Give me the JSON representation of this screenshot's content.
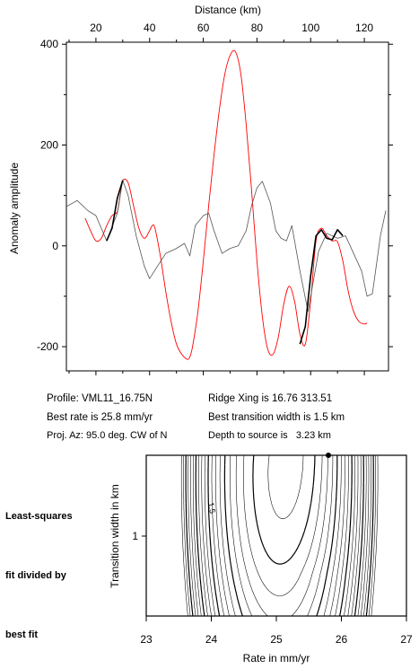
{
  "info": {
    "profile": "Profile: VML11_16.75N",
    "best_rate": "Best rate is 25.8 mm/yr",
    "proj_az": "Proj. Az: 95.0 deg. CW of N",
    "ridge_xing": "Ridge Xing is 16.76 313.51",
    "best_width": "Best transition width is 1.5 km",
    "depth": "Depth to source is   3.23 km"
  },
  "side_label": [
    "Least-squares",
    "fit divided by",
    "best fit"
  ],
  "contour_label": "1.5",
  "colors": {
    "model": "#ff0000",
    "observed": "#000000",
    "frame": "#000000"
  },
  "chart_data": [
    {
      "type": "line",
      "title": "",
      "xlabel": "Distance (km)",
      "ylabel": "Anomaly amplitude",
      "xlim": [
        9,
        129
      ],
      "ylim": [
        -248,
        404
      ],
      "x_ticks": [
        20,
        40,
        60,
        80,
        100,
        120
      ],
      "y_ticks": [
        400,
        200,
        0,
        -200
      ],
      "x_axis_position": "top",
      "grid": false,
      "series": [
        {
          "style": "model-red",
          "x": [
            16,
            18,
            20,
            22,
            24,
            26,
            28,
            29,
            30,
            32,
            34,
            36,
            38,
            40,
            41,
            42,
            44,
            46,
            48,
            50,
            52,
            54,
            55,
            56,
            58,
            60,
            62,
            64,
            66,
            68,
            70,
            72,
            74,
            76,
            78,
            80,
            82,
            84,
            86,
            88,
            90,
            92,
            94,
            96,
            98,
            100,
            102,
            104,
            106,
            108,
            110,
            112,
            114,
            116,
            118,
            120,
            121
          ],
          "y": [
            55,
            30,
            10,
            15,
            40,
            60,
            68,
            100,
            130,
            125,
            80,
            35,
            15,
            30,
            40,
            35,
            -20,
            -90,
            -150,
            -195,
            -215,
            -225,
            -220,
            -200,
            -130,
            -30,
            80,
            180,
            270,
            340,
            378,
            385,
            340,
            240,
            110,
            -30,
            -140,
            -205,
            -215,
            -180,
            -115,
            -80,
            -110,
            -175,
            -195,
            -110,
            10,
            35,
            20,
            10,
            8,
            -30,
            -90,
            -130,
            -150,
            -155,
            -153
          ]
        },
        {
          "style": "observed-gray",
          "x": [
            9,
            13,
            17,
            20,
            24,
            28,
            30,
            32,
            35,
            38,
            40,
            43,
            46,
            50,
            53,
            55,
            57,
            60,
            62,
            64,
            67,
            70,
            73,
            76,
            78,
            80,
            82,
            85,
            87,
            89,
            91,
            93,
            96,
            99,
            103,
            106,
            110,
            113,
            116,
            119,
            121,
            123,
            126,
            128
          ],
          "y": [
            78,
            90,
            70,
            60,
            10,
            65,
            130,
            100,
            20,
            -40,
            -65,
            -40,
            -15,
            -5,
            5,
            -20,
            40,
            60,
            65,
            30,
            -15,
            -5,
            0,
            30,
            80,
            115,
            128,
            85,
            30,
            15,
            10,
            40,
            -50,
            -130,
            -10,
            25,
            15,
            20,
            -15,
            -50,
            -100,
            -95,
            20,
            70
          ]
        },
        {
          "style": "observed-black-segment",
          "x": [
            24,
            26,
            28,
            30
          ],
          "y": [
            10,
            35,
            95,
            130
          ]
        },
        {
          "style": "observed-black-segment",
          "x": [
            96,
            98,
            100,
            102,
            104,
            106,
            108,
            110,
            112
          ],
          "y": [
            -195,
            -160,
            -60,
            20,
            32,
            15,
            12,
            32,
            20
          ]
        }
      ]
    },
    {
      "type": "contour",
      "title": "",
      "xlabel": "Rate in mm/yr",
      "ylabel": "Transition width in km",
      "xlim": [
        23,
        27
      ],
      "x_ticks": [
        23,
        24,
        25,
        26,
        27
      ],
      "y_ticks": [
        1
      ],
      "best_fit_marker": {
        "rate": 25.8,
        "width": 1.5
      },
      "contour_levels": 20
    }
  ]
}
